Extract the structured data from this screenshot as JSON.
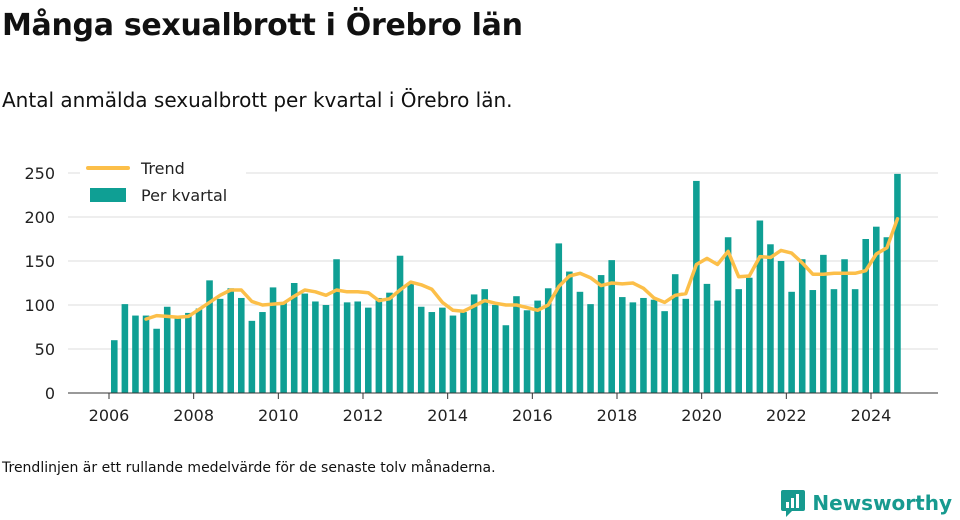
{
  "title": "Många sexualbrott i Örebro län",
  "subtitle": "Antal anmälda sexualbrott per kvartal i Örebro län.",
  "footnote": "Trendlinjen är ett rullande medelvärde för de senaste tolv månaderna.",
  "brand": {
    "name": "Newsworthy"
  },
  "colors": {
    "bar": "#0f9f94",
    "trend": "#fcbf49",
    "grid": "#dddddd",
    "brand": "#179a8f"
  },
  "chart_data": {
    "type": "bar",
    "title": "",
    "xlabel": "",
    "ylabel": "",
    "ylim": [
      0,
      250
    ],
    "yticks": [
      0,
      50,
      100,
      150,
      200,
      250
    ],
    "xticks": [
      "2006",
      "2008",
      "2010",
      "2012",
      "2014",
      "2016",
      "2018",
      "2020",
      "2022",
      "2024"
    ],
    "legend_position": "top-left",
    "grid": true,
    "categories": [
      "2006 Q1",
      "2006 Q2",
      "2006 Q3",
      "2006 Q4",
      "2007 Q1",
      "2007 Q2",
      "2007 Q3",
      "2007 Q4",
      "2008 Q1",
      "2008 Q2",
      "2008 Q3",
      "2008 Q4",
      "2009 Q1",
      "2009 Q2",
      "2009 Q3",
      "2009 Q4",
      "2010 Q1",
      "2010 Q2",
      "2010 Q3",
      "2010 Q4",
      "2011 Q1",
      "2011 Q2",
      "2011 Q3",
      "2011 Q4",
      "2012 Q1",
      "2012 Q2",
      "2012 Q3",
      "2012 Q4",
      "2013 Q1",
      "2013 Q2",
      "2013 Q3",
      "2013 Q4",
      "2014 Q1",
      "2014 Q2",
      "2014 Q3",
      "2014 Q4",
      "2015 Q1",
      "2015 Q2",
      "2015 Q3",
      "2015 Q4",
      "2016 Q1",
      "2016 Q2",
      "2016 Q3",
      "2016 Q4",
      "2017 Q1",
      "2017 Q2",
      "2017 Q3",
      "2017 Q4",
      "2018 Q1",
      "2018 Q2",
      "2018 Q3",
      "2018 Q4",
      "2019 Q1",
      "2019 Q2",
      "2019 Q3",
      "2019 Q4",
      "2020 Q1",
      "2020 Q2",
      "2020 Q3",
      "2020 Q4",
      "2021 Q1",
      "2021 Q2",
      "2021 Q3",
      "2021 Q4",
      "2022 Q1",
      "2022 Q2",
      "2022 Q3",
      "2022 Q4",
      "2023 Q1",
      "2023 Q2",
      "2023 Q3",
      "2023 Q4",
      "2024 Q1",
      "2024 Q2",
      "2024 Q3"
    ],
    "series": [
      {
        "name": "Per kvartal",
        "type": "bar",
        "values": [
          60,
          101,
          88,
          88,
          73,
          98,
          87,
          91,
          96,
          128,
          107,
          119,
          108,
          82,
          92,
          120,
          103,
          125,
          113,
          104,
          100,
          152,
          103,
          104,
          97,
          108,
          114,
          156,
          124,
          98,
          92,
          97,
          88,
          92,
          112,
          118,
          100,
          77,
          110,
          94,
          105,
          119,
          170,
          138,
          115,
          101,
          134,
          151,
          109,
          103,
          108,
          106,
          93,
          135,
          107,
          241,
          124,
          105,
          177,
          118,
          131,
          196,
          169,
          150,
          115,
          152,
          117,
          157,
          118,
          152,
          118,
          175,
          189,
          177,
          249
        ]
      },
      {
        "name": "Trend",
        "type": "line",
        "values": [
          null,
          null,
          null,
          84,
          88,
          87,
          86,
          87,
          95,
          103,
          111,
          117,
          117,
          104,
          100,
          101,
          102,
          110,
          117,
          115,
          111,
          117,
          115,
          115,
          114,
          105,
          107,
          117,
          126,
          123,
          118,
          103,
          94,
          93,
          99,
          105,
          102,
          100,
          100,
          97,
          94,
          100,
          121,
          133,
          136,
          131,
          122,
          125,
          124,
          125,
          119,
          108,
          103,
          111,
          113,
          146,
          153,
          146,
          161,
          132,
          133,
          155,
          154,
          162,
          159,
          148,
          135,
          135,
          136,
          136,
          136,
          139,
          158,
          165,
          198
        ]
      }
    ]
  }
}
